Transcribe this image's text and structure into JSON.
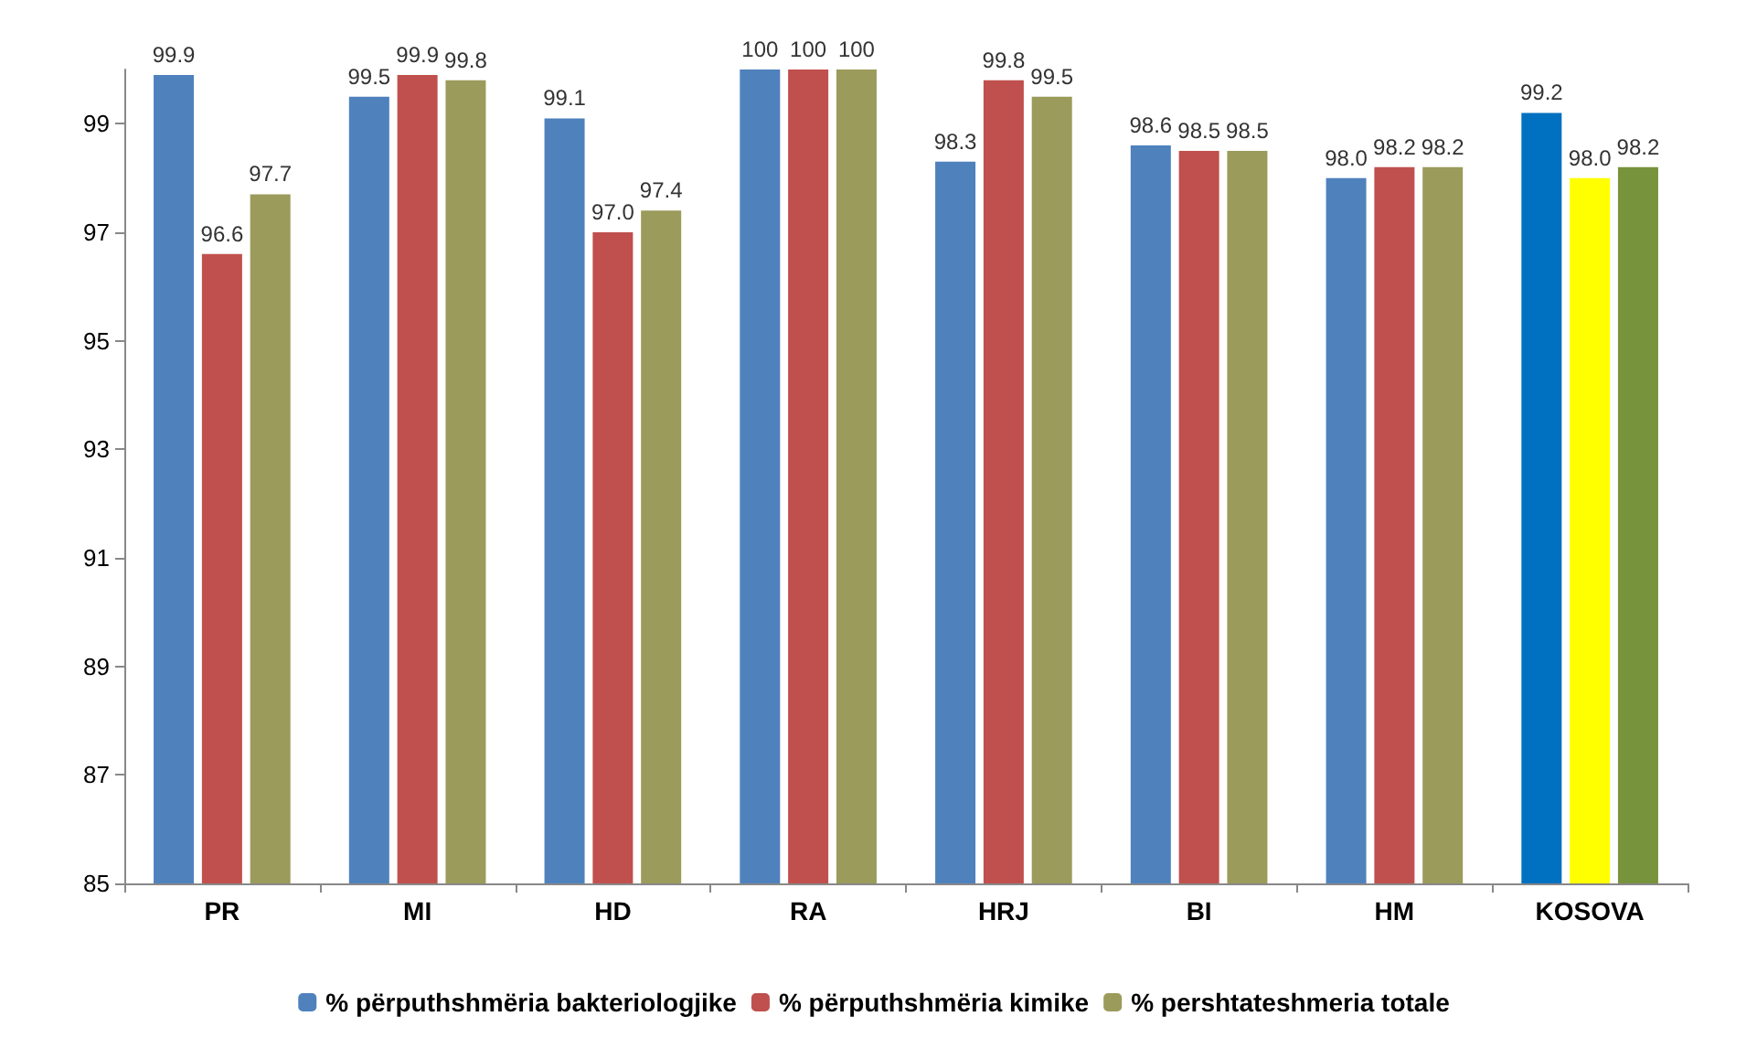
{
  "chart_data": {
    "type": "bar",
    "categories": [
      "PR",
      "MI",
      "HD",
      "RA",
      "HRJ",
      "BI",
      "HM",
      "KOSOVA"
    ],
    "series": [
      {
        "name": "% përputhshmëria bakteriologjike",
        "color": "#4f81bd",
        "colors": [
          "#4f81bd",
          "#4f81bd",
          "#4f81bd",
          "#4f81bd",
          "#4f81bd",
          "#4f81bd",
          "#4f81bd",
          "#0070c0"
        ],
        "values": [
          99.9,
          99.5,
          99.1,
          100,
          98.3,
          98.6,
          98.0,
          99.2
        ],
        "value_labels": [
          "99.9",
          "99.5",
          "99.1",
          "100",
          "98.3",
          "98.6",
          "98.0",
          "99.2"
        ]
      },
      {
        "name": "% përputhshmëria kimike",
        "color": "#c0504d",
        "colors": [
          "#c0504d",
          "#c0504d",
          "#c0504d",
          "#c0504d",
          "#c0504d",
          "#c0504d",
          "#c0504d",
          "#ffff00"
        ],
        "values": [
          96.6,
          99.9,
          97.0,
          100,
          99.8,
          98.5,
          98.2,
          98.0
        ],
        "value_labels": [
          "96.6",
          "99.9",
          "97.0",
          "100",
          "99.8",
          "98.5",
          "98.2",
          "98.0"
        ]
      },
      {
        "name": "% pershtateshmeria totale",
        "color": "#9b9b5b",
        "colors": [
          "#9b9b5b",
          "#9b9b5b",
          "#9b9b5b",
          "#9b9b5b",
          "#9b9b5b",
          "#9b9b5b",
          "#9b9b5b",
          "#77933c"
        ],
        "values": [
          97.7,
          99.8,
          97.4,
          100,
          99.5,
          98.5,
          98.2,
          98.2
        ],
        "value_labels": [
          "97.7",
          "99.8",
          "97.4",
          "100",
          "99.5",
          "98.5",
          "98.2",
          "98.2"
        ]
      }
    ],
    "ylim": [
      85,
      100
    ],
    "yticks": [
      85,
      87,
      89,
      91,
      93,
      95,
      97,
      99
    ],
    "grid": false,
    "legend": "bottom"
  }
}
